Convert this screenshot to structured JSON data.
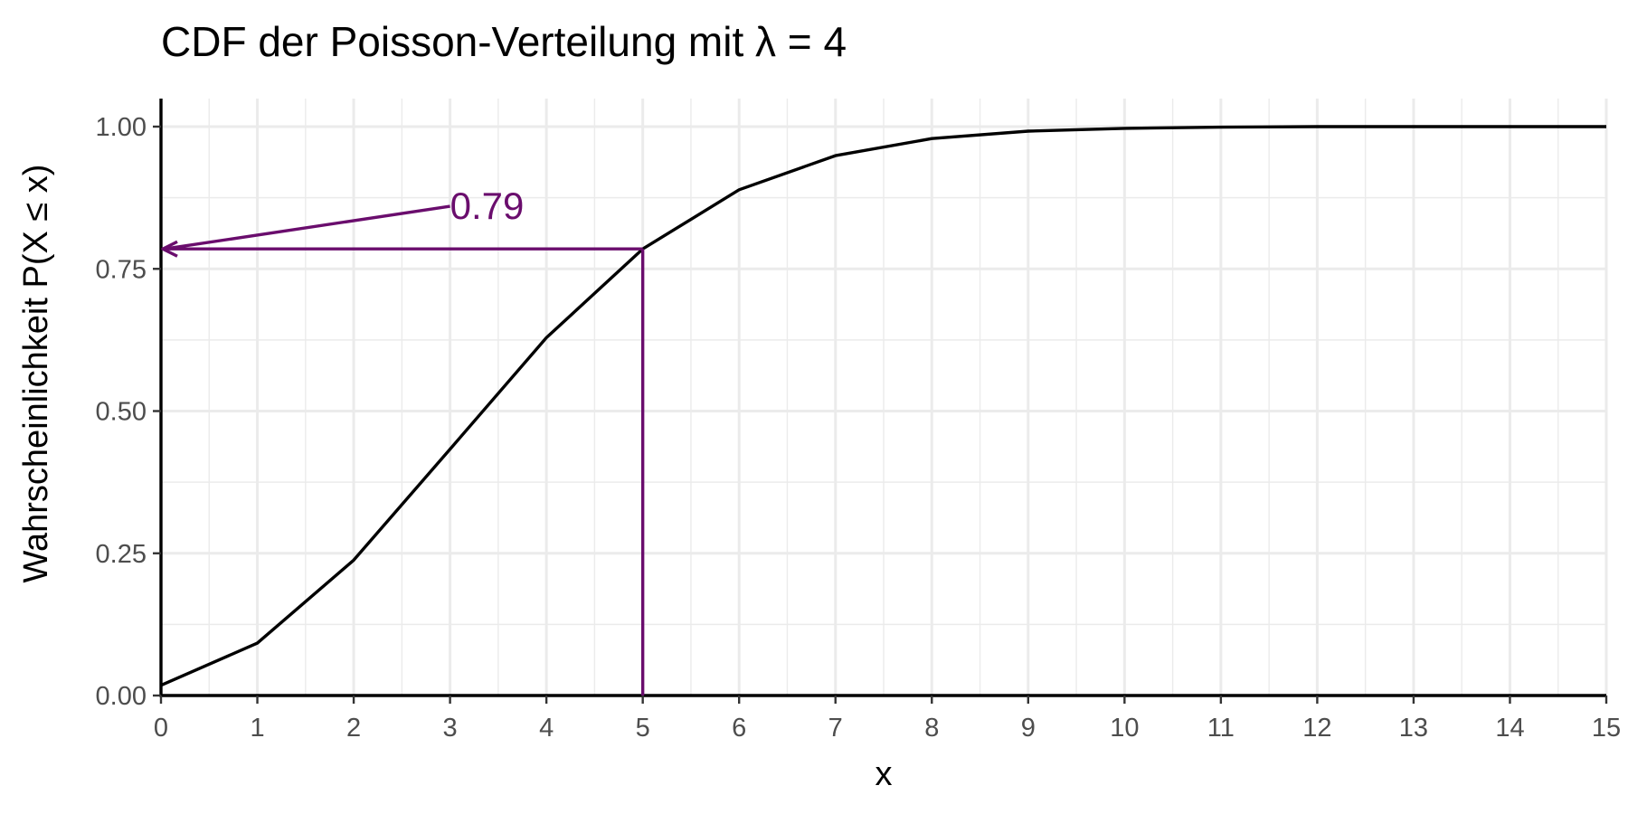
{
  "chart_data": {
    "type": "line",
    "title": "CDF der Poisson-Verteilung mit λ = 4",
    "xlabel": "x",
    "ylabel": "Wahrscheinlichkeit P(X ≤ x)",
    "xlim": [
      0,
      15
    ],
    "ylim": [
      0,
      1
    ],
    "x_ticks": [
      "0",
      "1",
      "2",
      "3",
      "4",
      "5",
      "6",
      "7",
      "8",
      "9",
      "10",
      "11",
      "12",
      "13",
      "14",
      "15"
    ],
    "y_ticks": [
      "0.00",
      "0.25",
      "0.50",
      "0.75",
      "1.00"
    ],
    "grid": true,
    "series": [
      {
        "x": [
          0,
          1,
          2,
          3,
          4,
          5,
          6,
          7,
          8,
          9,
          10,
          11,
          12,
          13,
          14,
          15
        ],
        "values": [
          0.018,
          0.092,
          0.238,
          0.433,
          0.629,
          0.785,
          0.889,
          0.949,
          0.979,
          0.992,
          0.997,
          0.999,
          1.0,
          1.0,
          1.0,
          1.0
        ]
      }
    ],
    "annotation": {
      "label": "0.79",
      "x": 5,
      "y": 0.785,
      "label_x": 3,
      "label_y": 0.86
    },
    "colors": {
      "line": "#000000",
      "annotation": "#6a0d6d",
      "grid": "#ebebeb",
      "axis": "#000000",
      "tick_text": "#4d4d4d"
    }
  }
}
